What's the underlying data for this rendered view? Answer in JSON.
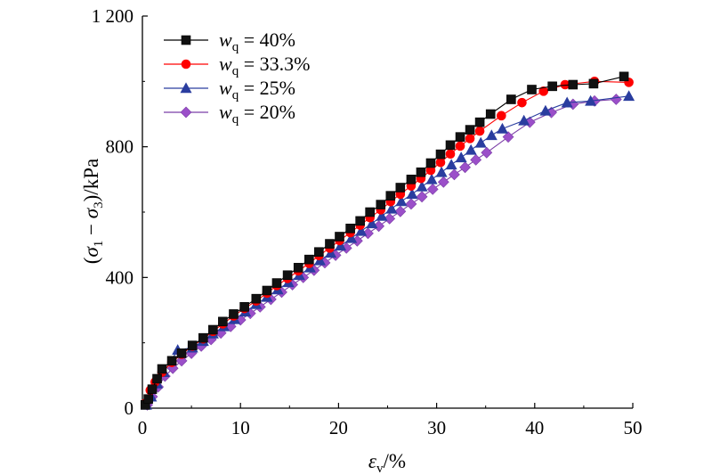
{
  "chart_data": {
    "type": "line",
    "xlabel": {
      "symbol": "ε",
      "sub": "v",
      "unit": "/%"
    },
    "ylabel": {
      "open": "(",
      "s1": "σ",
      "sub1": "1",
      "minus": " − ",
      "s3": "σ",
      "sub3": "3",
      "unit": ")/kPa"
    },
    "xlim": [
      0,
      50
    ],
    "ylim": [
      0,
      1200
    ],
    "x_ticks": [
      0,
      10,
      20,
      30,
      40,
      50
    ],
    "y_ticks": [
      0,
      400,
      800,
      1200
    ],
    "x_tick_labels": [
      "0",
      "10",
      "20",
      "30",
      "40",
      "50"
    ],
    "y_tick_labels": [
      "0",
      "400",
      "800",
      "1 200"
    ],
    "grid": false,
    "legend_position": "top-left",
    "series": [
      {
        "name": "40%",
        "legend_var": "w",
        "legend_sub": "q",
        "legend_eq": " = ",
        "color": "#000000",
        "fill": "#111111",
        "marker": "square",
        "x": [
          0.3,
          0.6,
          1.0,
          1.5,
          2.0,
          3.0,
          4.0,
          5.1,
          6.2,
          7.2,
          8.2,
          9.3,
          10.4,
          11.6,
          12.7,
          13.7,
          14.8,
          15.9,
          17.0,
          18.0,
          19.1,
          20.1,
          21.2,
          22.2,
          23.2,
          24.3,
          25.3,
          26.3,
          27.4,
          28.4,
          29.4,
          30.4,
          31.4,
          32.4,
          33.4,
          34.4,
          35.5,
          37.6,
          39.7,
          41.8,
          43.9,
          46.0,
          49.1
        ],
        "y": [
          10,
          28,
          58,
          90,
          120,
          145,
          168,
          192,
          215,
          240,
          265,
          288,
          310,
          335,
          360,
          383,
          407,
          430,
          455,
          478,
          503,
          525,
          550,
          573,
          600,
          623,
          650,
          675,
          700,
          722,
          750,
          777,
          805,
          830,
          852,
          875,
          900,
          945,
          975,
          985,
          990,
          993,
          1015
        ]
      },
      {
        "name": "33.3%",
        "legend_var": "w",
        "legend_sub": "q",
        "legend_eq": " = ",
        "color": "#ff0000",
        "fill": "#ff0000",
        "marker": "circle",
        "x": [
          0.3,
          0.8,
          1.3,
          2.0,
          3.0,
          4.0,
          5.1,
          6.2,
          7.2,
          8.2,
          9.3,
          10.4,
          11.6,
          12.7,
          13.7,
          14.8,
          15.9,
          17.0,
          18.0,
          19.1,
          20.1,
          21.2,
          22.2,
          23.2,
          24.3,
          25.3,
          26.3,
          27.4,
          28.4,
          29.4,
          30.4,
          31.4,
          32.4,
          33.4,
          34.4,
          36.6,
          38.7,
          40.9,
          43.1,
          46.1,
          49.6
        ],
        "y": [
          15,
          55,
          80,
          110,
          140,
          165,
          190,
          212,
          235,
          258,
          282,
          305,
          328,
          352,
          375,
          397,
          420,
          443,
          467,
          490,
          513,
          537,
          560,
          583,
          607,
          632,
          655,
          680,
          703,
          728,
          752,
          778,
          802,
          825,
          848,
          895,
          935,
          970,
          990,
          1000,
          997
        ]
      },
      {
        "name": "25%",
        "legend_var": "w",
        "legend_sub": "q",
        "legend_eq": " = ",
        "color": "#2a3d9f",
        "fill": "#2a3d9f",
        "marker": "triangle",
        "x": [
          0.4,
          0.9,
          1.5,
          2.2,
          3.6,
          5.1,
          6.2,
          7.2,
          8.3,
          9.4,
          10.5,
          11.6,
          12.7,
          13.8,
          14.9,
          16.0,
          17.1,
          18.1,
          19.2,
          20.2,
          21.3,
          22.3,
          23.4,
          24.4,
          25.4,
          26.4,
          27.5,
          28.5,
          29.5,
          30.5,
          31.5,
          32.5,
          33.5,
          34.5,
          35.6,
          36.7,
          38.9,
          41.1,
          43.3,
          45.7,
          49.6
        ],
        "y": [
          10,
          35,
          75,
          110,
          178,
          185,
          205,
          228,
          250,
          272,
          295,
          318,
          340,
          363,
          385,
          407,
          430,
          452,
          475,
          497,
          520,
          542,
          565,
          588,
          610,
          633,
          655,
          678,
          700,
          722,
          745,
          767,
          790,
          812,
          835,
          855,
          880,
          910,
          935,
          940,
          955
        ]
      },
      {
        "name": "20%",
        "legend_var": "w",
        "legend_sub": "q",
        "legend_eq": " = ",
        "color": "#7b3ea7",
        "fill": "#9b4fc9",
        "marker": "diamond",
        "x": [
          0.5,
          1.0,
          1.6,
          2.3,
          3.1,
          4.0,
          5.0,
          6.0,
          7.0,
          8.0,
          9.0,
          10.0,
          11.0,
          12.0,
          13.1,
          14.2,
          15.3,
          16.4,
          17.5,
          18.6,
          19.7,
          20.8,
          21.9,
          23.0,
          24.1,
          25.2,
          26.3,
          27.4,
          28.5,
          29.6,
          30.7,
          31.8,
          32.9,
          34.0,
          35.1,
          37.3,
          39.5,
          41.7,
          43.9,
          46.1,
          48.3
        ],
        "y": [
          10,
          35,
          65,
          98,
          122,
          145,
          168,
          190,
          210,
          230,
          250,
          270,
          290,
          310,
          333,
          355,
          378,
          400,
          422,
          445,
          468,
          490,
          512,
          535,
          557,
          580,
          602,
          625,
          647,
          670,
          692,
          715,
          737,
          760,
          782,
          830,
          875,
          905,
          930,
          940,
          945
        ]
      }
    ]
  }
}
